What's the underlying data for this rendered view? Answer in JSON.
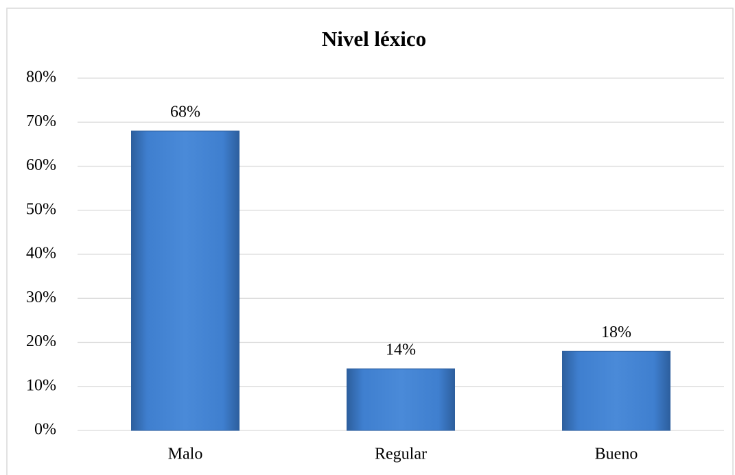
{
  "chart_data": {
    "type": "bar",
    "title": "Nivel léxico",
    "categories": [
      "Malo",
      "Regular",
      "Bueno"
    ],
    "values": [
      68,
      14,
      18
    ],
    "value_labels": [
      "68%",
      "14%",
      "18%"
    ],
    "color": "#3f7fcf",
    "ylim": [
      0,
      80
    ],
    "yticks": [
      {
        "value": 0,
        "label": "0%"
      },
      {
        "value": 10,
        "label": "10%"
      },
      {
        "value": 20,
        "label": "20%"
      },
      {
        "value": 30,
        "label": "30%"
      },
      {
        "value": 40,
        "label": "40%"
      },
      {
        "value": 50,
        "label": "50%"
      },
      {
        "value": 60,
        "label": "60%"
      },
      {
        "value": 70,
        "label": "70%"
      },
      {
        "value": 80,
        "label": "80%"
      }
    ],
    "grid": true
  }
}
